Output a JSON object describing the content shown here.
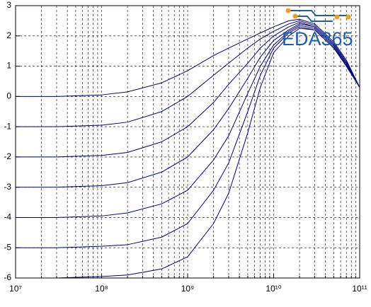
{
  "chart_data": {
    "type": "line",
    "x": [
      10000000,
      30000000,
      100000000,
      200000000,
      500000000,
      1000000000,
      2000000000,
      3000000000,
      5000000000,
      7000000000,
      10000000000,
      15000000000,
      20000000000,
      30000000000,
      50000000000,
      70000000000,
      100000000000
    ],
    "series": [
      {
        "color": "#00007f",
        "values": [
          0,
          0,
          0.05,
          0.15,
          0.45,
          0.85,
          1.35,
          1.6,
          1.9,
          2.1,
          2.3,
          2.5,
          2.55,
          2.4,
          1.8,
          1.2,
          0.3
        ]
      },
      {
        "color": "#00007f",
        "values": [
          -1,
          -1,
          -0.95,
          -0.85,
          -0.5,
          0,
          0.7,
          1.1,
          1.6,
          1.9,
          2.15,
          2.4,
          2.5,
          2.35,
          1.75,
          1.15,
          0.3
        ]
      },
      {
        "color": "#00007f",
        "values": [
          -2,
          -2,
          -1.95,
          -1.85,
          -1.5,
          -1,
          -0.2,
          0.4,
          1.1,
          1.6,
          2,
          2.3,
          2.45,
          2.3,
          1.7,
          1.1,
          0.3
        ]
      },
      {
        "color": "#00007f",
        "values": [
          -3,
          -3,
          -2.95,
          -2.85,
          -2.5,
          -2,
          -1.1,
          -0.4,
          0.6,
          1.3,
          1.85,
          2.2,
          2.4,
          2.3,
          1.7,
          1.1,
          0.3
        ]
      },
      {
        "color": "#00007f",
        "values": [
          -4,
          -4,
          -3.95,
          -3.85,
          -3.55,
          -3.1,
          -2.1,
          -1.3,
          0.1,
          1,
          1.7,
          2.15,
          2.35,
          2.25,
          1.65,
          1.05,
          0.3
        ]
      },
      {
        "color": "#00007f",
        "values": [
          -5,
          -5,
          -4.95,
          -4.9,
          -4.65,
          -4.2,
          -3.1,
          -2.2,
          -0.5,
          0.7,
          1.6,
          2.1,
          2.3,
          2.2,
          1.6,
          1.05,
          0.3
        ]
      },
      {
        "color": "#00007f",
        "values": [
          -6,
          -6,
          -5.95,
          -5.9,
          -5.7,
          -5.3,
          -4.2,
          -3.2,
          -1.2,
          0.3,
          1.45,
          2,
          2.25,
          2.2,
          1.6,
          1,
          0.3
        ]
      }
    ],
    "xscale": "log",
    "xlim": [
      10000000,
      100000000000
    ],
    "xticks": [
      {
        "value": 10000000,
        "label": "10⁷"
      },
      {
        "value": 100000000,
        "label": "10⁸"
      },
      {
        "value": 1000000000,
        "label": "10⁹"
      },
      {
        "value": 10000000000,
        "label": "10¹⁰"
      },
      {
        "value": 100000000000,
        "label": "10¹¹"
      }
    ],
    "ylim": [
      -6,
      3
    ],
    "yticks": [
      -6,
      -5,
      -4,
      -3,
      -2,
      -1,
      0,
      1,
      2,
      3
    ],
    "grid": true,
    "watermark": "EDA365"
  }
}
